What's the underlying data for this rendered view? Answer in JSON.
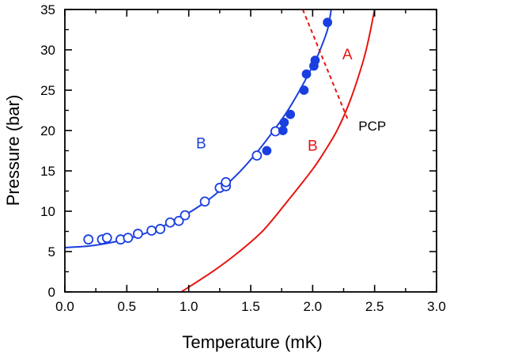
{
  "chart_data": {
    "type": "scatter",
    "xlabel": "Temperature (mK)",
    "ylabel": "Pressure (bar)",
    "xlim": [
      0.0,
      3.0
    ],
    "ylim": [
      0,
      35
    ],
    "x_ticks": [
      "0.0",
      "0.5",
      "1.0",
      "1.5",
      "2.0",
      "2.5",
      "3.0"
    ],
    "y_ticks": [
      "0",
      "5",
      "10",
      "15",
      "20",
      "25",
      "30",
      "35"
    ],
    "grid": false,
    "colors": {
      "blue": "#1a3fe0",
      "red": "#e8140f",
      "axis": "#000000"
    },
    "series": [
      {
        "name": "open circles",
        "style": "open-circle",
        "color": "#1a3fe0",
        "x": [
          0.19,
          0.3,
          0.34,
          0.45,
          0.51,
          0.59,
          0.7,
          0.77,
          0.85,
          0.92,
          0.97,
          1.13,
          1.25,
          1.3,
          1.3,
          1.55,
          1.7
        ],
        "y": [
          6.5,
          6.5,
          6.7,
          6.5,
          6.7,
          7.2,
          7.6,
          7.8,
          8.6,
          8.8,
          9.5,
          11.2,
          12.9,
          13.1,
          13.6,
          16.9,
          19.9
        ]
      },
      {
        "name": "filled circles",
        "style": "filled-circle",
        "color": "#1a3fe0",
        "x": [
          1.63,
          1.76,
          1.77,
          1.82,
          1.93,
          1.95,
          2.01,
          2.02,
          2.12
        ],
        "y": [
          17.5,
          20.0,
          21.0,
          22.0,
          25.0,
          27.0,
          28.0,
          28.7,
          33.4
        ]
      },
      {
        "name": "blue fit",
        "style": "line",
        "color": "#1a3fe0",
        "x": [
          0.0,
          0.2,
          0.4,
          0.6,
          0.8,
          1.0,
          1.2,
          1.4,
          1.55,
          1.7,
          1.8,
          1.9,
          2.0,
          2.05,
          2.12,
          2.15
        ],
        "y": [
          5.5,
          5.7,
          6.2,
          7.0,
          8.2,
          9.8,
          11.9,
          14.7,
          17.3,
          20.3,
          22.5,
          25.1,
          28.0,
          29.6,
          32.5,
          35.0
        ]
      },
      {
        "name": "red phase boundary",
        "style": "line",
        "color": "#e8140f",
        "x": [
          0.94,
          1.2,
          1.4,
          1.6,
          1.8,
          2.0,
          2.1,
          2.2,
          2.3,
          2.4,
          2.45,
          2.5
        ],
        "y": [
          0.0,
          2.6,
          4.9,
          7.6,
          11.3,
          15.2,
          17.5,
          20.1,
          23.6,
          28.2,
          31.2,
          35.0
        ]
      },
      {
        "name": "red dashed extension",
        "style": "dashed-line",
        "color": "#e8140f",
        "x": [
          1.92,
          2.28
        ],
        "y": [
          35.0,
          21.5
        ]
      }
    ],
    "annotations": [
      {
        "text": "B",
        "x": 1.1,
        "y": 18.5,
        "color": "#1a3fe0"
      },
      {
        "text": "A",
        "x": 2.28,
        "y": 29.5,
        "color": "#e8140f"
      },
      {
        "text": "B",
        "x": 2.0,
        "y": 18.2,
        "color": "#e8140f"
      },
      {
        "text": "PCP",
        "x": 2.37,
        "y": 20.7,
        "color": "#000000"
      }
    ]
  }
}
